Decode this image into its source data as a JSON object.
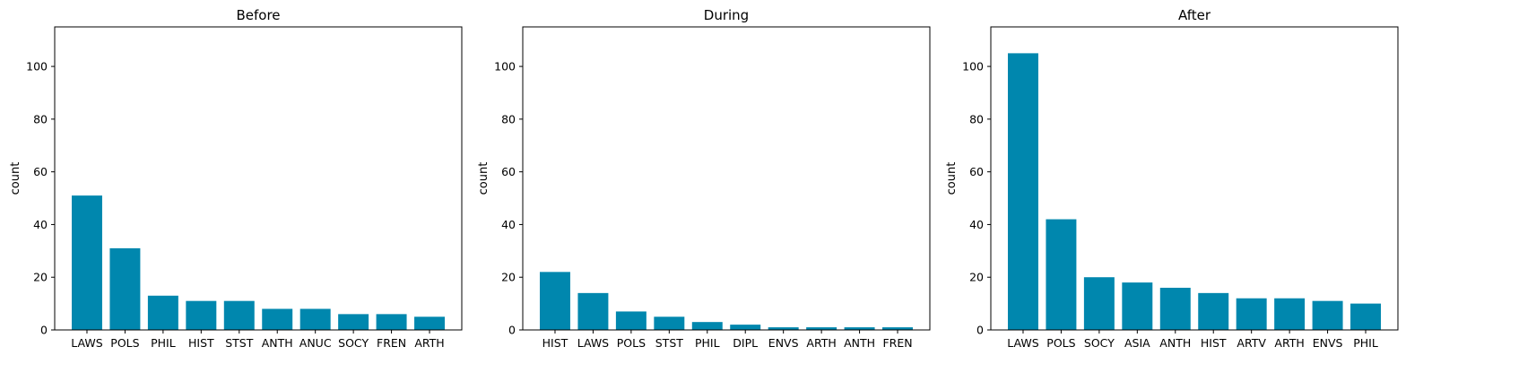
{
  "chart_data": [
    {
      "type": "bar",
      "title": "Before",
      "xlabel": "",
      "ylabel": "count",
      "ylim": [
        0,
        115
      ],
      "yticks": [
        0,
        20,
        40,
        60,
        80,
        100
      ],
      "categories": [
        "LAWS",
        "POLS",
        "PHIL",
        "HIST",
        "STST",
        "ANTH",
        "ANUC",
        "SOCY",
        "FREN",
        "ARTH"
      ],
      "values": [
        51,
        31,
        13,
        11,
        11,
        8,
        8,
        6,
        6,
        5
      ],
      "color": "#0087ae",
      "grid": false
    },
    {
      "type": "bar",
      "title": "During",
      "xlabel": "",
      "ylabel": "count",
      "ylim": [
        0,
        115
      ],
      "yticks": [
        0,
        20,
        40,
        60,
        80,
        100
      ],
      "categories": [
        "HIST",
        "LAWS",
        "POLS",
        "STST",
        "PHIL",
        "DIPL",
        "ENVS",
        "ARTH",
        "ANTH",
        "FREN"
      ],
      "values": [
        22,
        14,
        7,
        5,
        3,
        2,
        1,
        1,
        1,
        1
      ],
      "color": "#0087ae",
      "grid": false
    },
    {
      "type": "bar",
      "title": "After",
      "xlabel": "",
      "ylabel": "count",
      "ylim": [
        0,
        115
      ],
      "yticks": [
        0,
        20,
        40,
        60,
        80,
        100
      ],
      "categories": [
        "LAWS",
        "POLS",
        "SOCY",
        "ASIA",
        "ANTH",
        "HIST",
        "ARTV",
        "ARTH",
        "ENVS",
        "PHIL"
      ],
      "values": [
        105,
        42,
        20,
        18,
        16,
        14,
        12,
        12,
        11,
        10
      ],
      "color": "#0087ae",
      "grid": false
    }
  ]
}
